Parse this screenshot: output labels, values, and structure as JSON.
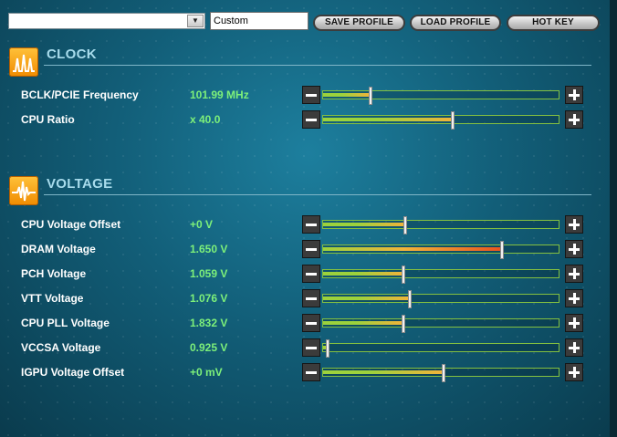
{
  "toolbar": {
    "profile_selected": "",
    "profile_name": "Custom",
    "save_label": "SAVE PROFILE",
    "load_label": "LOAD PROFILE",
    "hotkey_label": "HOT KEY"
  },
  "clock": {
    "title": "CLOCK",
    "icon": "clock-waveform-icon",
    "items": [
      {
        "label": "BCLK/PCIE Frequency",
        "value": "101.99 MHz",
        "level": 0.2
      },
      {
        "label": "CPU Ratio",
        "value": "x 40.0",
        "level": 0.55
      }
    ]
  },
  "voltage": {
    "title": "VOLTAGE",
    "icon": "voltage-pulse-icon",
    "items": [
      {
        "label": "CPU Voltage Offset",
        "value": "+0 V",
        "level": 0.35
      },
      {
        "label": "DRAM Voltage",
        "value": "1.650 V",
        "level": 0.76
      },
      {
        "label": "PCH Voltage",
        "value": "1.059 V",
        "level": 0.34
      },
      {
        "label": "VTT Voltage",
        "value": "1.076 V",
        "level": 0.37
      },
      {
        "label": "CPU PLL Voltage",
        "value": "1.832 V",
        "level": 0.34
      },
      {
        "label": "VCCSA Voltage",
        "value": "0.925 V",
        "level": 0.02
      },
      {
        "label": "IGPU Voltage Offset",
        "value": "+0 mV",
        "level": 0.51
      }
    ]
  },
  "colors": {
    "fill_start": "#9cd23c",
    "fill_warm": "#f2b33a",
    "fill_hot": "#e8531f",
    "value_text": "#7df07a"
  }
}
